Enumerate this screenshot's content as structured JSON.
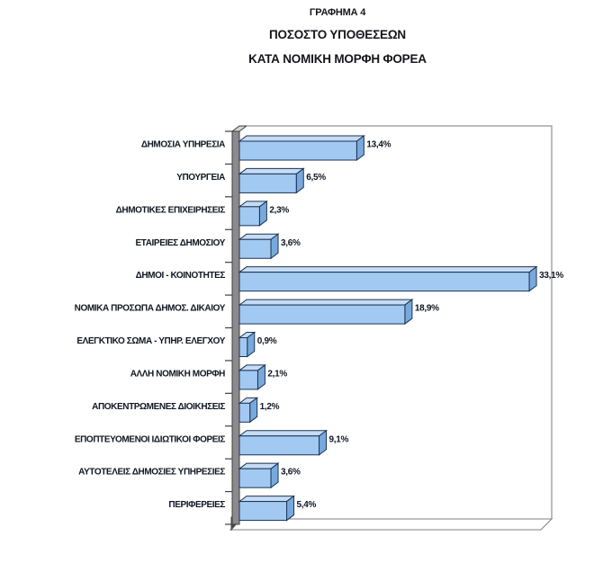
{
  "title": {
    "line1": "ΓΡΑΦΗΜΑ 4",
    "line2": "ΠΟΣΟΣΤΟ ΥΠΟΘΕΣΕΩΝ",
    "line3": "ΚΑΤΑ ΝΟΜΙΚΗ ΜΟΡΦΗ ΦΟΡΕΑ"
  },
  "chart_data": {
    "type": "bar",
    "orientation": "horizontal",
    "style": "3d",
    "title": "ΓΡΑΦΗΜΑ 4 — ΠΟΣΟΣΤΟ ΥΠΟΘΕΣΕΩΝ ΚΑΤΑ ΝΟΜΙΚΗ ΜΟΡΦΗ ΦΟΡΕΑ",
    "categories": [
      "ΔΗΜΟΣΙΑ ΥΠΗΡΕΣΙΑ",
      "ΥΠΟΥΡΓΕΙΑ",
      "ΔΗΜΟΤΙΚΕΣ ΕΠΙΧΕΙΡΗΣΕΙΣ",
      "ΕΤΑΙΡΕΙΕΣ ΔΗΜΟΣΙΟΥ",
      "ΔΗΜΟΙ - ΚΟΙΝΟΤΗΤΕΣ",
      "ΝΟΜΙΚΑ ΠΡΟΣΩΠΑ ΔΗΜΟΣ. ΔΙΚΑΙΟΥ",
      "ΕΛΕΓΚΤΙΚΟ ΣΩΜΑ - ΥΠΗΡ. ΕΛΕΓΧΟΥ",
      "ΑΛΛΗ ΝΟΜΙΚΗ ΜΟΡΦΗ",
      "ΑΠΟΚΕΝΤΡΩΜΕΝΕΣ ΔΙΟΙΚΗΣΕΙΣ",
      "ΕΠΟΠΤΕΥΟΜΕΝΟΙ ΙΔΙΩΤΙΚΟΙ ΦΟΡΕΙΣ",
      "ΑΥΤΟΤΕΛΕΙΣ ΔΗΜΟΣΙΕΣ ΥΠΗΡΕΣΙΕΣ",
      "ΠΕΡΙΦΕΡΕΙΕΣ"
    ],
    "values": [
      13.4,
      6.5,
      2.3,
      3.6,
      33.1,
      18.9,
      0.9,
      2.1,
      1.2,
      9.1,
      3.6,
      5.4
    ],
    "value_labels": [
      "13,4%",
      "6,5%",
      "2,3%",
      "3,6%",
      "33,1%",
      "18,9%",
      "0,9%",
      "2,1%",
      "1,2%",
      "9,1%",
      "3,6%",
      "5,4%"
    ],
    "xlabel": "",
    "ylabel": "",
    "xlim": [
      0,
      35.5
    ],
    "grid": false,
    "legend": false,
    "data_labels": true,
    "colors": {
      "bar_front": "#A2C9F2",
      "bar_top": "#C6DCF6",
      "bar_end": "#79A9DC",
      "bar_border": "#1B3350",
      "wall_fill": "#8C8A8C",
      "wall_top_fill": "#D6D6D6",
      "wall_edge": "#3F3F3F",
      "wall_base": "#4A4A4A",
      "frame": "#A6A6A6",
      "floor_fill": "#FFFFFF",
      "floor_edge": "#808080",
      "tick": "#3F3F3F",
      "text": "#101622"
    }
  }
}
